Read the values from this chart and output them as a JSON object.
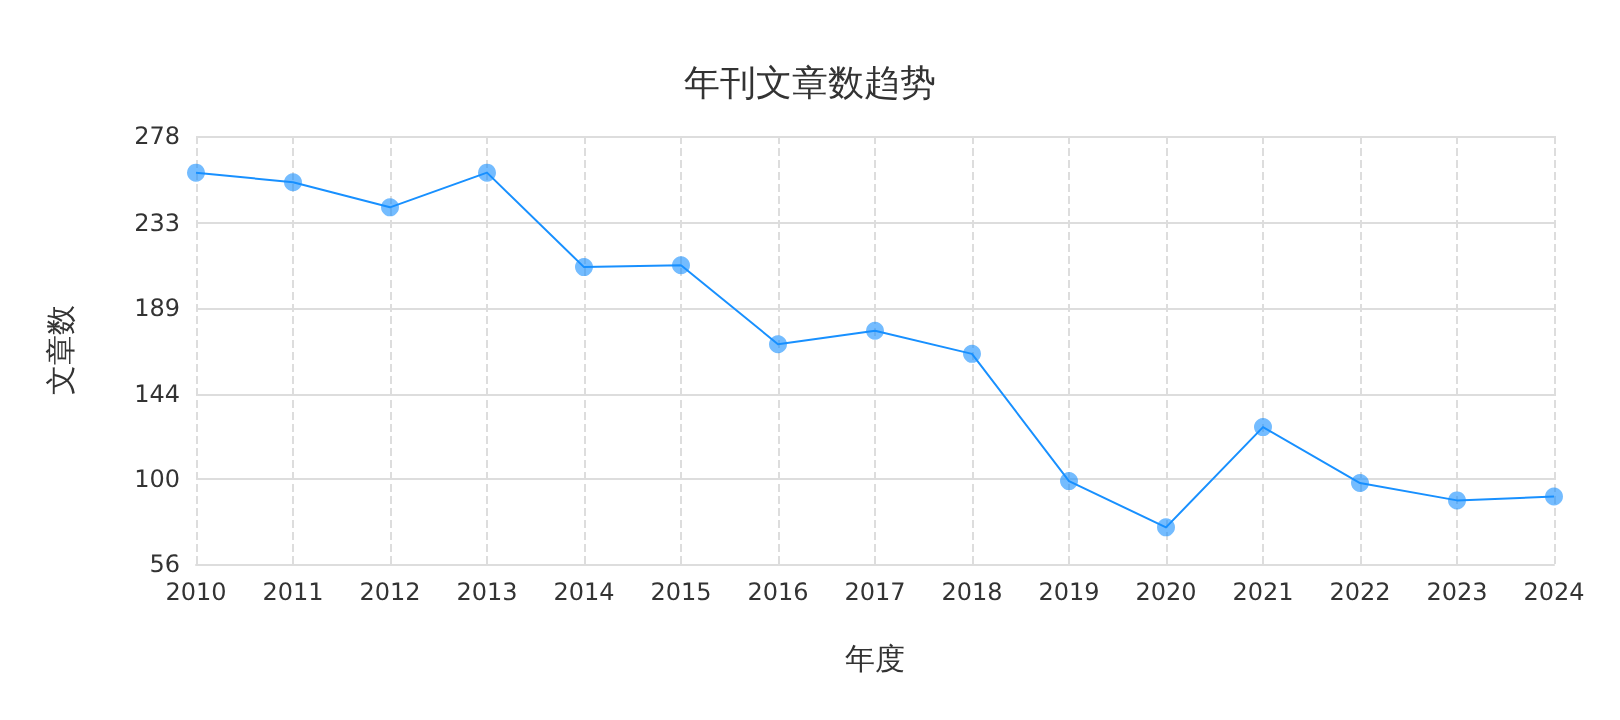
{
  "chart_data": {
    "type": "line",
    "title": "年刊文章数趋势",
    "xlabel": "年度",
    "ylabel": "文章数",
    "categories": [
      "2010",
      "2011",
      "2012",
      "2013",
      "2014",
      "2015",
      "2016",
      "2017",
      "2018",
      "2019",
      "2020",
      "2021",
      "2022",
      "2023",
      "2024"
    ],
    "series": [
      {
        "color": "#1890ff",
        "values": [
          259,
          254,
          241,
          259,
          210,
          211,
          170,
          177,
          165,
          99,
          75,
          127,
          98,
          89,
          91
        ]
      }
    ],
    "ylim": [
      56,
      278
    ],
    "yticks": [
      56,
      100,
      144,
      189,
      233,
      278
    ],
    "grid": true,
    "marker": "circle"
  }
}
